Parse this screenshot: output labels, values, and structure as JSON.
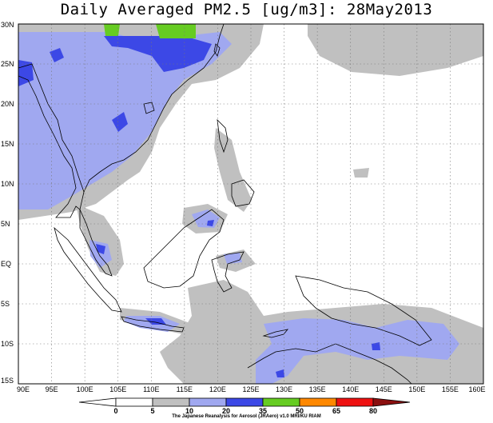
{
  "title": "Daily Averaged PM2.5 [ug/m3]: 28May2013",
  "credit": "The Japanese Reanalysis for Aerosol (JRAero) v1.0 MRI/KU RIAM",
  "map": {
    "lon_labels": [
      "90E",
      "95E",
      "100E",
      "105E",
      "110E",
      "115E",
      "120E",
      "125E",
      "130E",
      "135E",
      "140E",
      "145E",
      "150E",
      "155E",
      "160E"
    ],
    "lat_labels": [
      "30N",
      "25N",
      "20N",
      "15N",
      "10N",
      "5N",
      "EQ",
      "5S",
      "10S",
      "15S"
    ],
    "lon_range": [
      90,
      160
    ],
    "lat_range": [
      -15,
      30
    ],
    "grid": "dotted"
  },
  "colorbar": {
    "labels": [
      "0",
      "5",
      "10",
      "20",
      "35",
      "50",
      "65",
      "80"
    ],
    "bins": [
      {
        "range": "0-5",
        "color": "#ffffff"
      },
      {
        "range": "5-10",
        "color": "#ffffff"
      },
      {
        "range": "10-20",
        "color": "#c0c0c0"
      },
      {
        "range": "20-35",
        "color": "#a0a8f0"
      },
      {
        "range": "35-50",
        "color": "#3c48e6"
      },
      {
        "range": "50-65",
        "color": "#66cc22"
      },
      {
        "range": "65-80",
        "color": "#ff8800"
      },
      {
        "range": ">80",
        "color": "#ee1111"
      }
    ],
    "under_color": "#ffffff",
    "over_color": "#8b1010"
  },
  "colors": {
    "gray": "#c0c0c0",
    "lightblue": "#a0a8f0",
    "blue": "#3c48e6",
    "green": "#66cc22",
    "coast": "#000000"
  }
}
